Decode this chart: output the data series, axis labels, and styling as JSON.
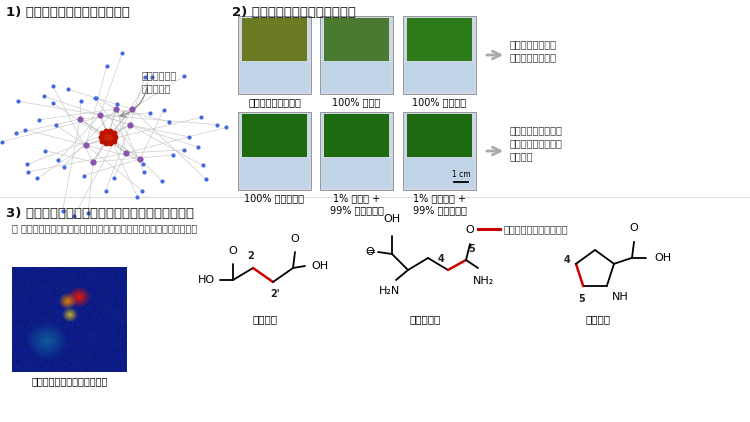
{
  "section1_title": "1) 作物の収量を含むモジュール",
  "section2_title": "2) 無菌栽培で有機態窒素の評価",
  "section3_title": "3) 同位体標識によりアラニンの吸収と代謝の評価",
  "section3_bullet": "・ 同位体標識したアラニンを根から吸収させて後に地上部を解析した",
  "hub_label": "有機態窒素が\nハブノード",
  "arrow1_text": "アラニンは栄養源\nとして利用される",
  "arrow2_text": "コリンとアラニンは\n生理活性物質として\n作用する",
  "legend_red": "アラニン由来の炭素結合",
  "plant_labels_row1": [
    "無処理（窒素なし）",
    "100% コリン",
    "100% アラニン"
  ],
  "plant_labels_row2": [
    "100% 無機態窒素",
    "1% コリン +\n99% 無機態窒素",
    "1% アラニン +\n99% 無機態窒素"
  ],
  "mol_labels": [
    "アラニン由来の炭素を可視化",
    "コハク酸",
    "グルタミン",
    "プロリン"
  ],
  "scale_label": "1 cm",
  "background": "#ffffff",
  "text_color": "#111111",
  "node_color_blue": "#4169e1",
  "node_color_red": "#cc2200",
  "node_color_purple": "#8855aa",
  "red_bond": "#cc0000"
}
